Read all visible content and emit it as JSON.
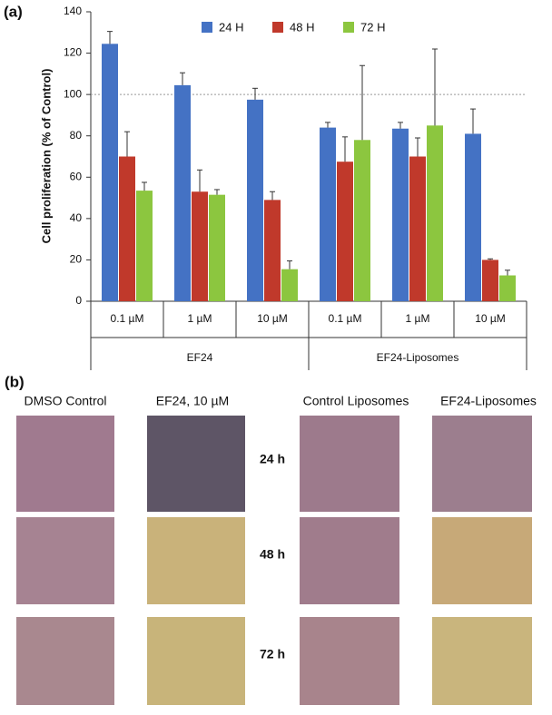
{
  "chart_data": {
    "type": "bar",
    "panel_label": "(a)",
    "y_label": "Cell proliferation (% of Control)",
    "categories": [
      "0.1 µM",
      "1 µM",
      "10 µM",
      "0.1 µM",
      "1 µM",
      "10 µM"
    ],
    "group_labels": [
      "EF24",
      "EF24-Liposomes"
    ],
    "series": [
      {
        "name": "24 H",
        "color": "#4472c4",
        "values": [
          124.5,
          104.5,
          97.5,
          84,
          83.5,
          81
        ],
        "errors": [
          6,
          6,
          5.5,
          2.5,
          3,
          12
        ]
      },
      {
        "name": "48 H",
        "color": "#c0392b",
        "values": [
          70,
          53,
          49,
          67.5,
          70,
          20
        ],
        "errors": [
          12,
          10.5,
          4,
          12,
          9,
          0.5
        ]
      },
      {
        "name": "72 H",
        "color": "#8cc63f",
        "values": [
          53.5,
          51.5,
          15.5,
          78,
          85,
          12.5
        ],
        "errors": [
          4,
          2.5,
          4,
          36,
          37,
          2.5
        ]
      }
    ],
    "ylim": [
      0,
      140
    ],
    "yticks": [
      0,
      20,
      40,
      60,
      80,
      100,
      120,
      140
    ],
    "reference_line": 100,
    "grid": false,
    "legend": "top"
  },
  "panel_b": {
    "label": "(b)",
    "columns": [
      "DMSO Control",
      "EF24, 10 µM",
      "Control Liposomes",
      "EF24-Liposomes"
    ],
    "rows": [
      "24 h",
      "48 h",
      "72 h"
    ]
  }
}
